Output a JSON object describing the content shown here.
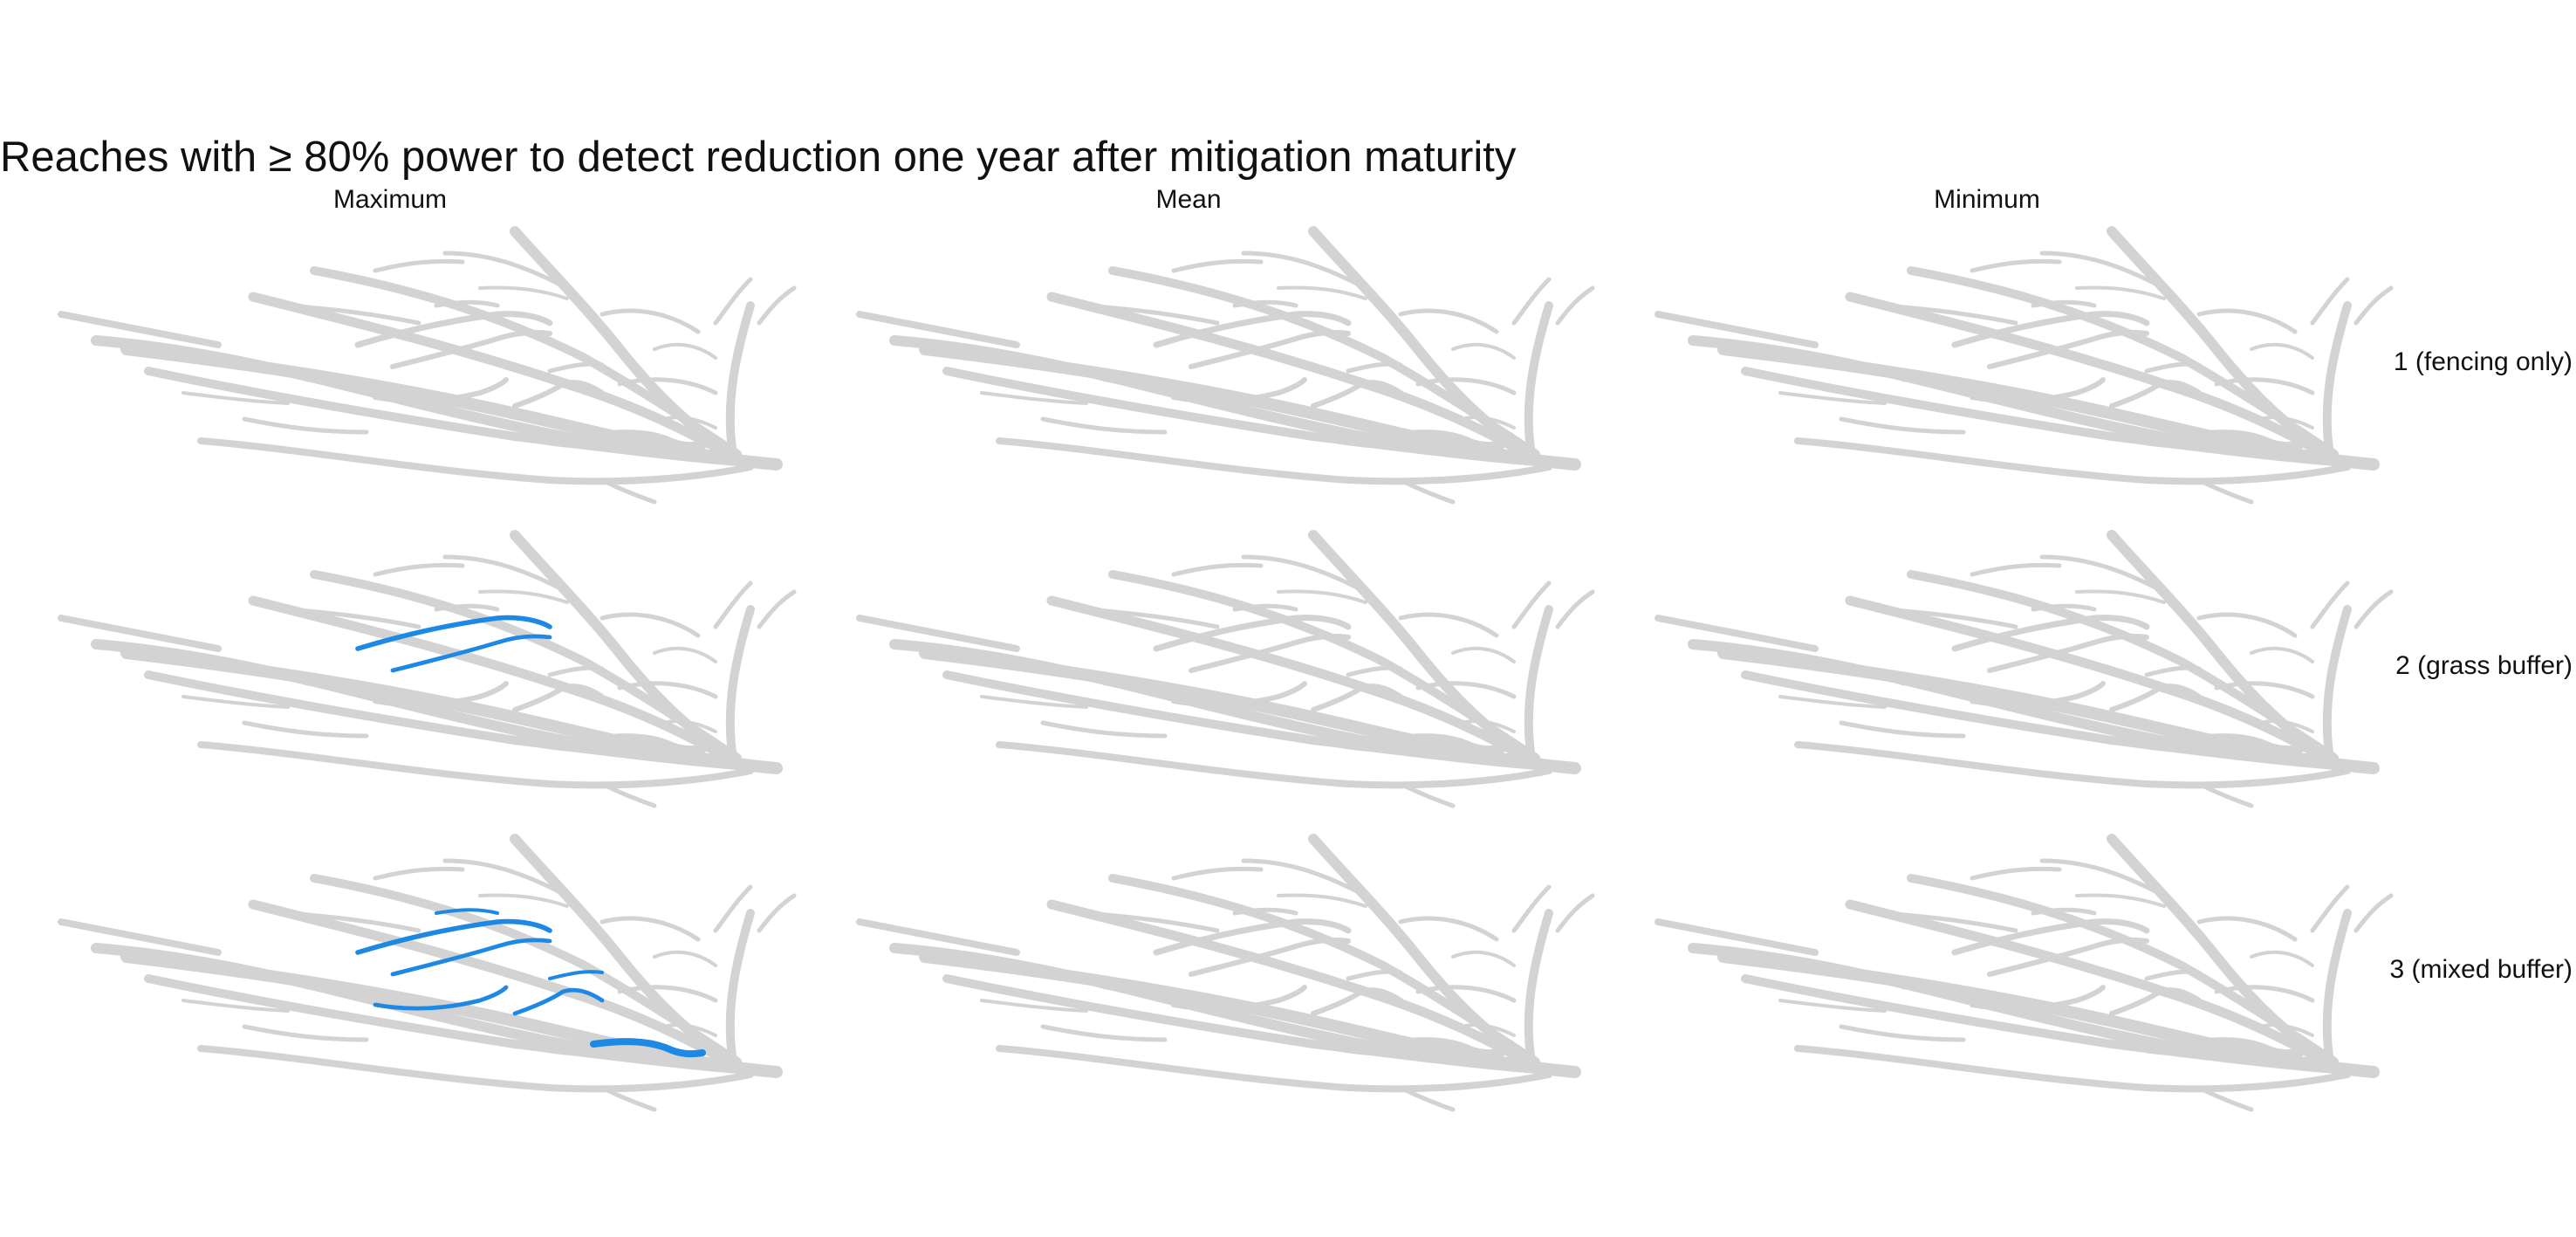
{
  "title": "Reaches with ≥ 80% power to detect reduction one year after mitigation maturity",
  "columns": [
    "Maximum",
    "Mean",
    "Minimum"
  ],
  "rows": [
    "1 (fencing only)",
    "2 (grass buffer)",
    "3 (mixed buffer)"
  ],
  "colors": {
    "network": "#d3d3d3",
    "detected": "#1e88e5",
    "background": "#ffffff",
    "text": "#111111"
  },
  "highlighted_reaches": {
    "2 (grass buffer)": {
      "Maximum": [
        "r10",
        "r11"
      ],
      "Mean": [],
      "Minimum": []
    },
    "3 (mixed buffer)": {
      "Maximum": [
        "r10",
        "r11",
        "r12",
        "r13",
        "r14",
        "r15",
        "r16"
      ],
      "Mean": [],
      "Minimum": []
    },
    "1 (fencing only)": {
      "Maximum": [],
      "Mean": [],
      "Minimum": []
    }
  }
}
